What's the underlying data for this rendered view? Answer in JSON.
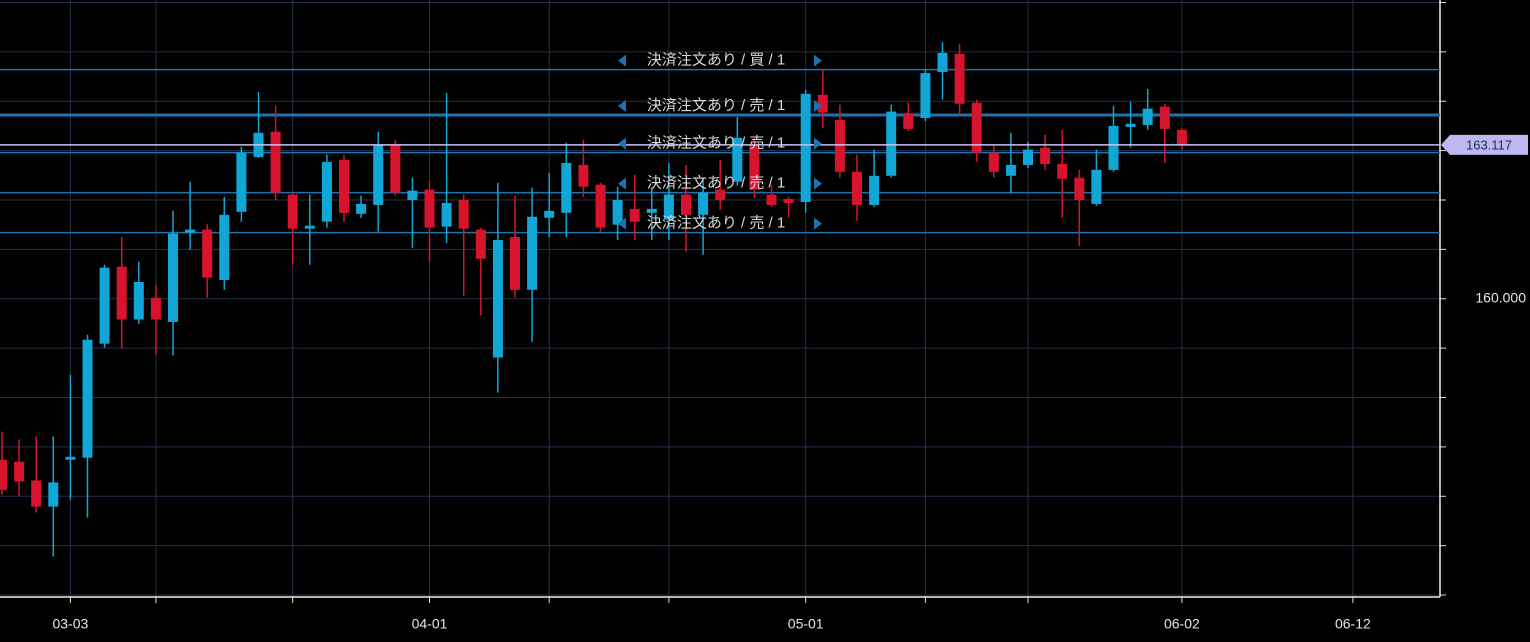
{
  "chart_data": {
    "type": "candlestick",
    "categories": [
      null,
      null,
      null,
      null,
      "03-03",
      null,
      null,
      null,
      null,
      null,
      null,
      null,
      null,
      null,
      null,
      null,
      null,
      null,
      null,
      null,
      null,
      null,
      null,
      null,
      null,
      "04-01",
      null,
      null,
      null,
      null,
      null,
      null,
      null,
      null,
      null,
      null,
      null,
      null,
      null,
      null,
      null,
      null,
      null,
      null,
      null,
      null,
      null,
      "05-01",
      null,
      null,
      null,
      null,
      null,
      null,
      null,
      null,
      null,
      null,
      null,
      null,
      null,
      null,
      null,
      null,
      null,
      null,
      null,
      null,
      null,
      "06-02",
      null,
      null,
      null,
      null,
      null,
      null,
      null,
      null,
      null,
      "06-12",
      null,
      null,
      null,
      null
    ],
    "open": [
      156.74,
      156.7,
      156.32,
      155.79,
      156.74,
      156.78,
      159.09,
      160.65,
      159.58,
      160.02,
      159.53,
      161.34,
      161.4,
      160.38,
      161.76,
      162.87,
      163.38,
      162.11,
      161.42,
      161.56,
      162.81,
      161.72,
      161.9,
      163.12,
      162.0,
      162.21,
      161.46,
      162.0,
      161.4,
      158.81,
      161.25,
      160.18,
      161.64,
      161.74,
      162.71,
      162.31,
      161.5,
      161.82,
      161.74,
      161.6,
      162.11,
      161.7,
      162.21,
      162.37,
      163.12,
      162.11,
      162.02,
      161.96,
      164.13,
      163.62,
      162.57,
      161.9,
      162.49,
      163.76,
      163.66,
      164.59,
      164.96,
      163.97,
      162.96,
      162.49,
      162.71,
      163.06,
      162.73,
      162.45,
      161.92,
      162.61,
      163.48,
      163.52,
      163.89,
      163.42,
      null,
      null,
      null,
      null,
      null,
      null,
      null,
      null,
      null,
      null,
      null,
      null,
      null,
      null
    ],
    "high": [
      157.31,
      157.15,
      157.21,
      157.21,
      158.46,
      159.27,
      160.69,
      161.25,
      160.75,
      160.28,
      161.78,
      162.37,
      161.52,
      162.06,
      163.08,
      164.19,
      163.91,
      162.15,
      162.11,
      162.92,
      162.92,
      162.09,
      163.38,
      163.22,
      162.45,
      162.37,
      164.17,
      162.11,
      161.44,
      162.35,
      162.09,
      162.25,
      162.55,
      163.16,
      163.22,
      162.35,
      162.27,
      162.51,
      162.25,
      162.75,
      162.71,
      162.45,
      162.81,
      163.68,
      163.26,
      162.31,
      162.06,
      164.23,
      164.62,
      163.93,
      162.92,
      163.02,
      163.93,
      163.97,
      164.64,
      165.2,
      165.16,
      164.03,
      163.12,
      163.36,
      163.18,
      163.32,
      163.42,
      162.61,
      163.02,
      163.91,
      163.99,
      164.25,
      163.95,
      163.46,
      null,
      null,
      null,
      null,
      null,
      null,
      null,
      null,
      null,
      null,
      null,
      null,
      null,
      null
    ],
    "low": [
      156.03,
      156.01,
      155.67,
      154.78,
      155.93,
      155.57,
      159.01,
      158.99,
      159.49,
      158.87,
      158.85,
      160.99,
      160.02,
      160.18,
      161.56,
      162.85,
      162.0,
      160.69,
      160.69,
      161.44,
      161.56,
      161.64,
      161.36,
      162.09,
      161.03,
      160.75,
      161.13,
      160.06,
      159.66,
      158.1,
      160.02,
      159.13,
      161.25,
      161.25,
      162.06,
      161.36,
      161.19,
      161.19,
      161.19,
      161.19,
      160.95,
      160.89,
      161.8,
      162.29,
      162.04,
      161.86,
      161.64,
      161.74,
      163.46,
      162.45,
      161.58,
      161.86,
      162.45,
      163.4,
      163.6,
      164.03,
      163.72,
      162.77,
      162.45,
      162.13,
      162.65,
      162.61,
      161.64,
      161.07,
      161.88,
      162.57,
      163.06,
      163.42,
      162.75,
      163.02,
      null,
      null,
      null,
      null,
      null,
      null,
      null,
      null,
      null,
      null,
      null,
      null,
      null,
      null
    ],
    "close": [
      156.13,
      156.3,
      155.79,
      156.28,
      156.8,
      159.17,
      160.63,
      159.58,
      160.34,
      159.58,
      161.32,
      161.4,
      160.43,
      161.7,
      162.96,
      163.36,
      162.15,
      161.42,
      161.48,
      162.77,
      161.74,
      161.92,
      163.12,
      162.15,
      162.19,
      161.44,
      161.94,
      161.42,
      160.81,
      161.19,
      160.18,
      161.66,
      161.78,
      162.75,
      162.27,
      161.44,
      162.0,
      161.56,
      161.82,
      162.11,
      161.7,
      162.15,
      162.0,
      163.26,
      162.21,
      161.9,
      161.94,
      164.15,
      163.77,
      162.57,
      161.9,
      162.49,
      163.79,
      163.44,
      164.57,
      164.98,
      163.95,
      162.96,
      162.57,
      162.71,
      163.02,
      162.73,
      162.43,
      162.0,
      162.61,
      163.5,
      163.54,
      163.85,
      163.44,
      163.12,
      null,
      null,
      null,
      null,
      null,
      null,
      null,
      null,
      null,
      null,
      null,
      null,
      null,
      null
    ],
    "up_color": "#12a6d6",
    "down_color": "#d6142e",
    "ylim": [
      153.96,
      166.05
    ],
    "yticks": [
      {
        "value": 160,
        "label": "160.000"
      }
    ],
    "ygrid": [
      154,
      155,
      156,
      157,
      158,
      159,
      160,
      161,
      162,
      163,
      164,
      165,
      166
    ],
    "xgrid": [
      4,
      9,
      17,
      25,
      32,
      39,
      47,
      54,
      60,
      69,
      79
    ],
    "last_price": 163.117,
    "orders": [
      {
        "label": "決済注文あり / 買 / 1",
        "price": 164.64
      },
      {
        "label": "決済注文あり / 売 / 1",
        "price": 163.72
      },
      {
        "label": "決済注文あり / 売 / 1",
        "price": 162.96
      },
      {
        "label": "決済注文あり / 売 / 1",
        "price": 162.15
      },
      {
        "label": "決済注文あり / 売 / 1",
        "price": 161.34
      }
    ]
  }
}
